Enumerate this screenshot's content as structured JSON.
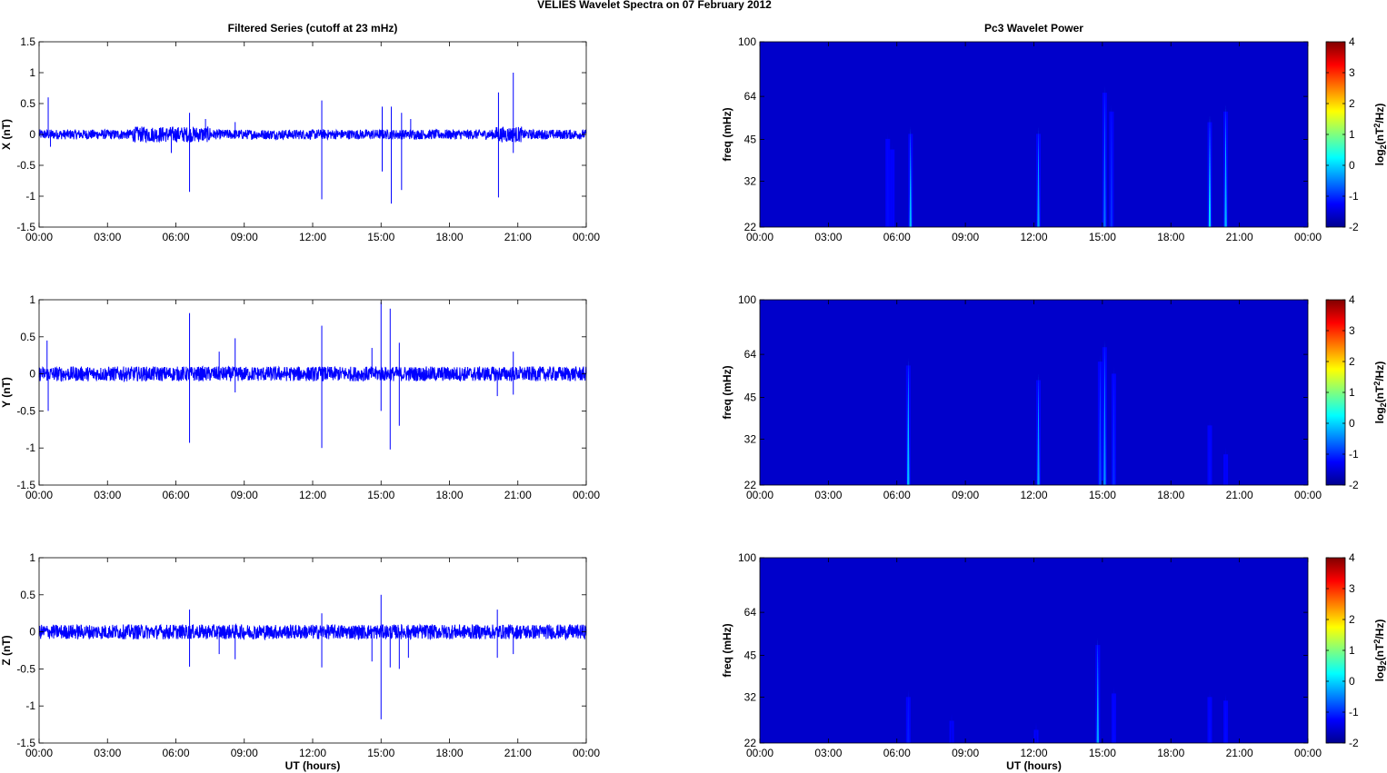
{
  "figure_title": "VELIES Wavelet Spectra on 07 February  2012",
  "colors": {
    "series": "#0000ff",
    "background_map": "#00008f",
    "axis": "#000000"
  },
  "chart_data": [
    {
      "type": "line",
      "title": "Filtered Series (cutoff at 23 mHz)",
      "ylabel": "X (nT)",
      "xlabel": "",
      "xlim": [
        0,
        24
      ],
      "ylim": [
        -1.5,
        1.5
      ],
      "xticks": [
        "00:00",
        "03:00",
        "06:00",
        "09:00",
        "12:00",
        "15:00",
        "18:00",
        "21:00",
        "00:00"
      ],
      "yticks": [
        "-1.5",
        "-1",
        "-0.5",
        "0",
        "0.5",
        "1",
        "1.5"
      ],
      "yticks_values": [
        -1.5,
        -1,
        -0.5,
        0,
        0.5,
        1,
        1.5
      ],
      "noise_amplitude": 0.08,
      "series": [
        {
          "values_x": [
            0.4,
            5.7,
            6.6,
            7.2,
            12.4,
            15.0,
            15.4,
            16.0,
            20.2,
            20.8
          ],
          "values_y": [
            0.6,
            -0.25,
            -0.93,
            0.3,
            -1.05,
            0.45,
            -1.12,
            0.3,
            -1.02,
            1.0
          ]
        }
      ],
      "spikes": [
        [
          0.4,
          0.6
        ],
        [
          0.5,
          -0.2
        ],
        [
          5.8,
          -0.3
        ],
        [
          6.6,
          -0.93
        ],
        [
          6.6,
          0.35
        ],
        [
          7.3,
          0.25
        ],
        [
          8.6,
          0.2
        ],
        [
          12.4,
          0.55
        ],
        [
          12.4,
          -1.05
        ],
        [
          15.05,
          0.45
        ],
        [
          15.05,
          -0.6
        ],
        [
          15.45,
          0.45
        ],
        [
          15.45,
          -1.12
        ],
        [
          15.9,
          0.35
        ],
        [
          15.9,
          -0.9
        ],
        [
          16.3,
          0.25
        ],
        [
          20.15,
          0.68
        ],
        [
          20.15,
          -1.02
        ],
        [
          20.8,
          1.0
        ],
        [
          20.8,
          -0.3
        ]
      ]
    },
    {
      "type": "line",
      "title": "",
      "ylabel": "Y (nT)",
      "xlabel": "",
      "xlim": [
        0,
        24
      ],
      "ylim": [
        -1.5,
        1.0
      ],
      "xticks": [
        "00:00",
        "03:00",
        "06:00",
        "09:00",
        "12:00",
        "15:00",
        "18:00",
        "21:00",
        "00:00"
      ],
      "yticks": [
        "-1.5",
        "-1",
        "-0.5",
        "0",
        "0.5",
        "1"
      ],
      "yticks_values": [
        -1.5,
        -1,
        -0.5,
        0,
        0.5,
        1
      ],
      "noise_amplitude": 0.1,
      "spikes": [
        [
          0.35,
          0.45
        ],
        [
          0.4,
          -0.5
        ],
        [
          6.6,
          0.82
        ],
        [
          6.6,
          -0.93
        ],
        [
          7.9,
          0.3
        ],
        [
          8.6,
          0.48
        ],
        [
          8.6,
          -0.25
        ],
        [
          12.4,
          0.65
        ],
        [
          12.4,
          -1.0
        ],
        [
          14.6,
          0.35
        ],
        [
          15.0,
          0.97
        ],
        [
          15.0,
          -0.5
        ],
        [
          15.4,
          0.88
        ],
        [
          15.4,
          -1.02
        ],
        [
          15.8,
          0.42
        ],
        [
          15.8,
          -0.7
        ],
        [
          20.1,
          -0.3
        ],
        [
          20.8,
          0.3
        ],
        [
          20.8,
          -0.28
        ]
      ]
    },
    {
      "type": "line",
      "title": "",
      "ylabel": "Z (nT)",
      "xlabel": "UT (hours)",
      "xlim": [
        0,
        24
      ],
      "ylim": [
        -1.5,
        1.0
      ],
      "xticks": [
        "00:00",
        "03:00",
        "06:00",
        "09:00",
        "12:00",
        "15:00",
        "18:00",
        "21:00",
        "00:00"
      ],
      "yticks": [
        "-1.5",
        "-1",
        "-0.5",
        "0",
        "0.5",
        "1"
      ],
      "yticks_values": [
        -1.5,
        -1,
        -0.5,
        0,
        0.5,
        1
      ],
      "noise_amplitude": 0.1,
      "spikes": [
        [
          6.6,
          0.3
        ],
        [
          6.6,
          -0.47
        ],
        [
          7.9,
          -0.3
        ],
        [
          8.6,
          -0.37
        ],
        [
          12.4,
          0.25
        ],
        [
          12.4,
          -0.48
        ],
        [
          14.6,
          -0.4
        ],
        [
          15.0,
          0.5
        ],
        [
          15.0,
          -1.18
        ],
        [
          15.4,
          -0.48
        ],
        [
          15.8,
          -0.5
        ],
        [
          16.2,
          -0.35
        ],
        [
          20.1,
          0.3
        ],
        [
          20.1,
          -0.35
        ],
        [
          20.8,
          -0.3
        ]
      ]
    },
    {
      "type": "heatmap",
      "title": "Pc3 Wavelet Power",
      "ylabel": "freq (mHz)",
      "xlabel": "",
      "xlim": [
        0,
        24
      ],
      "ylim": [
        22,
        100
      ],
      "yscale": "log",
      "xticks": [
        "00:00",
        "03:00",
        "06:00",
        "09:00",
        "12:00",
        "15:00",
        "18:00",
        "21:00",
        "00:00"
      ],
      "yticks": [
        "22",
        "32",
        "45",
        "64",
        "100"
      ],
      "yticks_values": [
        22,
        32,
        45,
        64,
        100
      ],
      "colorbar_label": "log2(nT2/Hz)",
      "colorbar_ticks": [
        "4",
        "3",
        "2",
        "1",
        "0",
        "-1",
        "-2"
      ],
      "colorbar_range": [
        -2,
        4
      ],
      "background_level": -1.6,
      "streaks": [
        {
          "x": 5.6,
          "top": 48,
          "level": -1.2
        },
        {
          "x": 5.8,
          "top": 44,
          "level": -1.3
        },
        {
          "x": 6.6,
          "top": 50,
          "level": -0.2
        },
        {
          "x": 12.2,
          "top": 50,
          "level": -0.3
        },
        {
          "x": 15.1,
          "top": 70,
          "level": -0.6
        },
        {
          "x": 15.4,
          "top": 60,
          "level": -1.0
        },
        {
          "x": 19.7,
          "top": 55,
          "level": 0.0
        },
        {
          "x": 20.4,
          "top": 60,
          "level": -0.2
        }
      ]
    },
    {
      "type": "heatmap",
      "title": "",
      "ylabel": "freq (mHz)",
      "xlabel": "",
      "xlim": [
        0,
        24
      ],
      "ylim": [
        22,
        100
      ],
      "yscale": "log",
      "xticks": [
        "00:00",
        "03:00",
        "06:00",
        "09:00",
        "12:00",
        "15:00",
        "18:00",
        "21:00",
        "00:00"
      ],
      "yticks": [
        "22",
        "32",
        "45",
        "64",
        "100"
      ],
      "yticks_values": [
        22,
        32,
        45,
        64,
        100
      ],
      "colorbar_label": "log2(nT2/Hz)",
      "colorbar_ticks": [
        "4",
        "3",
        "2",
        "1",
        "0",
        "-1",
        "-2"
      ],
      "colorbar_range": [
        -2,
        4
      ],
      "background_level": -1.6,
      "streaks": [
        {
          "x": 6.5,
          "top": 62,
          "level": -0.1
        },
        {
          "x": 12.2,
          "top": 55,
          "level": -0.3
        },
        {
          "x": 14.9,
          "top": 64,
          "level": -0.8
        },
        {
          "x": 15.1,
          "top": 72,
          "level": -0.4
        },
        {
          "x": 15.5,
          "top": 58,
          "level": -1.0
        },
        {
          "x": 19.7,
          "top": 38,
          "level": -1.2
        },
        {
          "x": 20.4,
          "top": 30,
          "level": -1.3
        }
      ]
    },
    {
      "type": "heatmap",
      "title": "",
      "ylabel": "freq (mHz)",
      "xlabel": "UT (hours)",
      "xlim": [
        0,
        24
      ],
      "ylim": [
        22,
        100
      ],
      "yscale": "log",
      "xticks": [
        "00:00",
        "03:00",
        "06:00",
        "09:00",
        "12:00",
        "15:00",
        "18:00",
        "21:00",
        "00:00"
      ],
      "yticks": [
        "22",
        "32",
        "45",
        "64",
        "100"
      ],
      "yticks_values": [
        22,
        32,
        45,
        64,
        100
      ],
      "colorbar_label": "log2(nT2/Hz)",
      "colorbar_ticks": [
        "4",
        "3",
        "2",
        "1",
        "0",
        "-1",
        "-2"
      ],
      "colorbar_range": [
        -2,
        4
      ],
      "background_level": -1.6,
      "streaks": [
        {
          "x": 6.5,
          "top": 34,
          "level": -1.1
        },
        {
          "x": 8.4,
          "top": 28,
          "level": -1.4
        },
        {
          "x": 12.1,
          "top": 26,
          "level": -1.4
        },
        {
          "x": 14.8,
          "top": 52,
          "level": -0.3
        },
        {
          "x": 15.5,
          "top": 35,
          "level": -1.2
        },
        {
          "x": 19.7,
          "top": 34,
          "level": -1.2
        },
        {
          "x": 20.4,
          "top": 33,
          "level": -1.2
        }
      ]
    }
  ]
}
